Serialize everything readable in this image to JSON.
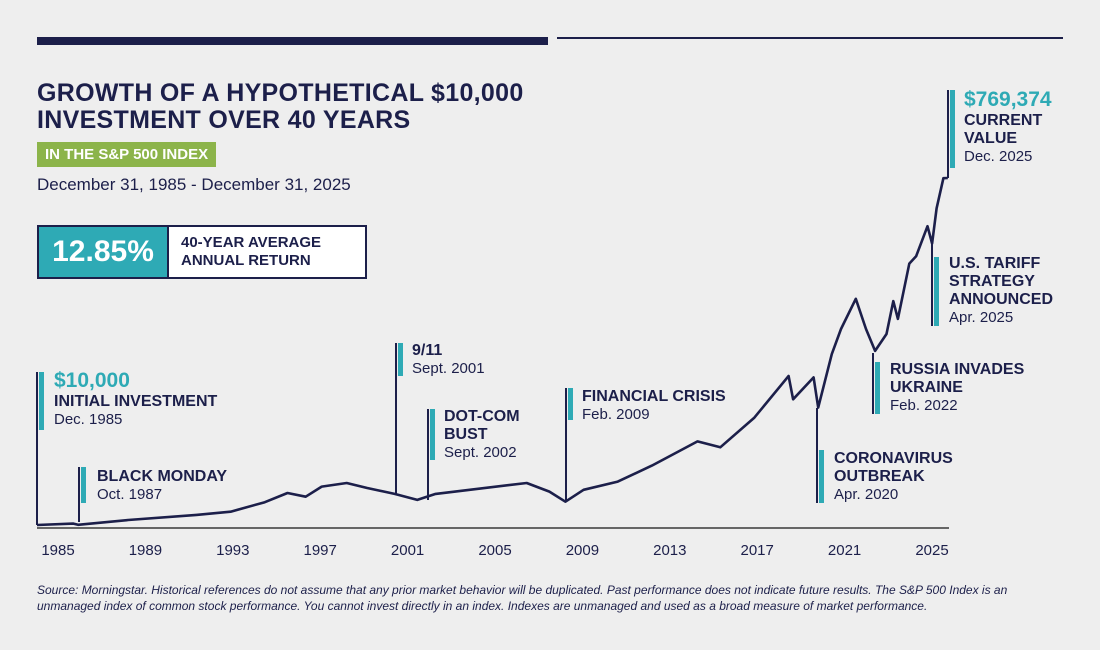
{
  "header": {
    "title_line1": "GROWTH OF A HYPOTHETICAL $10,000",
    "title_line2": "INVESTMENT OVER 40 YEARS",
    "badge": "IN THE S&P 500 INDEX",
    "date_range": "December 31, 1985 - December 31, 2025"
  },
  "stat": {
    "value": "12.85%",
    "label_line1": "40-YEAR AVERAGE",
    "label_line2": "ANNUAL RETURN"
  },
  "annotations": {
    "initial": {
      "value": "$10,000",
      "title": "INITIAL INVESTMENT",
      "date": "Dec. 1985"
    },
    "black_monday": {
      "title": "BLACK MONDAY",
      "date": "Oct. 1987"
    },
    "nine_eleven": {
      "title": "9/11",
      "date": "Sept. 2001"
    },
    "dotcom": {
      "title1": "DOT-COM",
      "title2": "BUST",
      "date": "Sept. 2002"
    },
    "financial": {
      "title": "FINANCIAL CRISIS",
      "date": "Feb. 2009"
    },
    "covid": {
      "title1": "CORONAVIRUS",
      "title2": "OUTBREAK",
      "date": "Apr. 2020"
    },
    "russia": {
      "title1": "RUSSIA INVADES",
      "title2": "UKRAINE",
      "date": "Feb. 2022"
    },
    "tariff": {
      "title1": "U.S. TARIFF",
      "title2": "STRATEGY",
      "title3": "ANNOUNCED",
      "date": "Apr. 2025"
    },
    "current": {
      "value": "$769,374",
      "title1": "CURRENT",
      "title2": "VALUE",
      "date": "Dec. 2025"
    }
  },
  "footnote": "Source: Morningstar. Historical references do not assume that any prior market behavior will be duplicated. Past performance does not indicate future results. The S&P 500 Index is an unmanaged index of common stock performance. You cannot invest directly in an index. Indexes are unmanaged and used as a broad measure of market performance.",
  "colors": {
    "navy": "#1c1f4a",
    "teal": "#2eaab5",
    "green": "#8cb44a"
  },
  "chart_data": {
    "type": "line",
    "title": "Growth of a hypothetical $10,000 investment over 40 years",
    "xlabel": "",
    "ylabel": "",
    "x_ticks": [
      "1985",
      "1989",
      "1993",
      "1997",
      "2001",
      "2005",
      "2009",
      "2013",
      "2017",
      "2021",
      "2025"
    ],
    "xlim": [
      1986.0,
      2026.0
    ],
    "ylim": [
      10000,
      769374
    ],
    "grid": false,
    "series": [
      {
        "name": "S&P 500 $10,000 growth",
        "x": [
          1986.0,
          1987.6,
          1987.8,
          1990,
          1993,
          1994.5,
          1996,
          1997,
          1997.8,
          1998.5,
          1999.6,
          2000.5,
          2001.7,
          2002.7,
          2003.5,
          2005,
          2007.5,
          2008.5,
          2009.2,
          2010,
          2011.5,
          2013,
          2015,
          2016,
          2017.5,
          2019.0,
          2019.2,
          2020.1,
          2020.3,
          2020.9,
          2021.3,
          2021.95,
          2022.4,
          2022.8,
          2023.3,
          2023.6,
          2023.8,
          2024.3,
          2024.6,
          2025.1,
          2025.3,
          2025.5,
          2025.8,
          2025.99
        ],
        "y": [
          10000,
          13000,
          10500,
          21000,
          32000,
          39000,
          60000,
          80000,
          72000,
          94000,
          102000,
          91000,
          78000,
          65000,
          78000,
          87000,
          102000,
          83000,
          61000,
          87000,
          105000,
          140000,
          193000,
          180000,
          245000,
          336000,
          285000,
          333000,
          267000,
          384000,
          439000,
          505000,
          439000,
          391000,
          428000,
          500000,
          461000,
          582000,
          598000,
          664000,
          626000,
          703000,
          769000,
          769374
        ]
      }
    ]
  }
}
